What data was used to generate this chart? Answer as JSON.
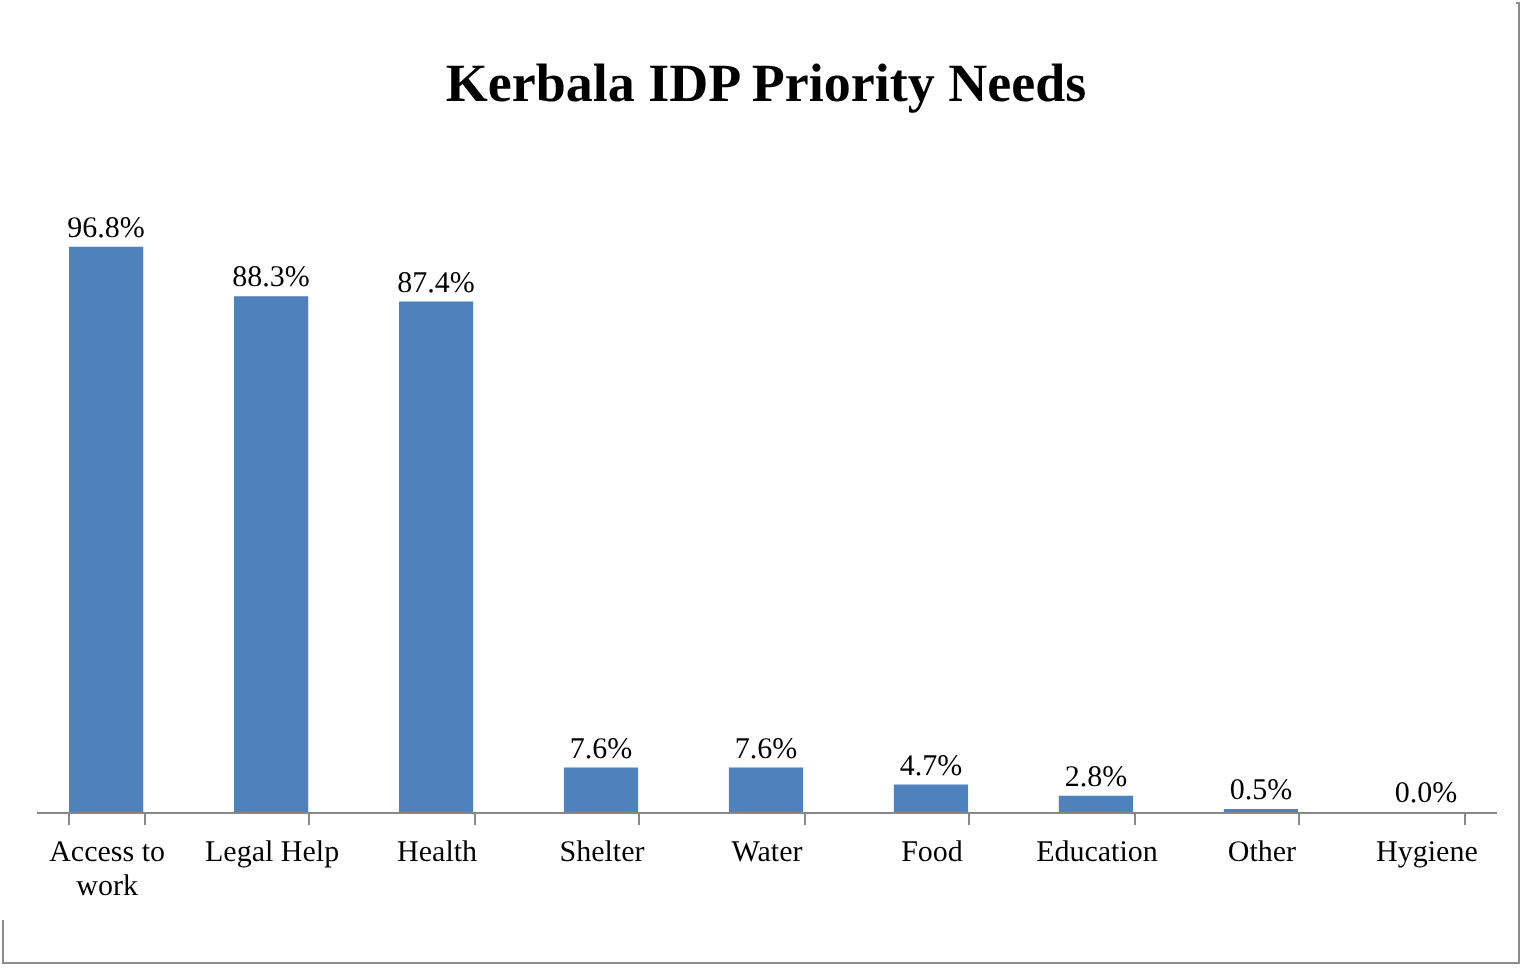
{
  "chart_data": {
    "type": "bar",
    "title": "Kerbala IDP Priority Needs",
    "categories": [
      "Access to work",
      "Legal Help",
      "Health",
      "Shelter",
      "Water",
      "Food",
      "Education",
      "Other",
      "Hygiene"
    ],
    "values": [
      96.8,
      88.3,
      87.4,
      7.6,
      7.6,
      4.7,
      2.8,
      0.5,
      0.0
    ],
    "value_labels": [
      "96.8%",
      "88.3%",
      "87.4%",
      "7.6%",
      "7.6%",
      "4.7%",
      "2.8%",
      "0.5%",
      "0.0%"
    ],
    "color": "#4f81bd",
    "grid": false
  }
}
